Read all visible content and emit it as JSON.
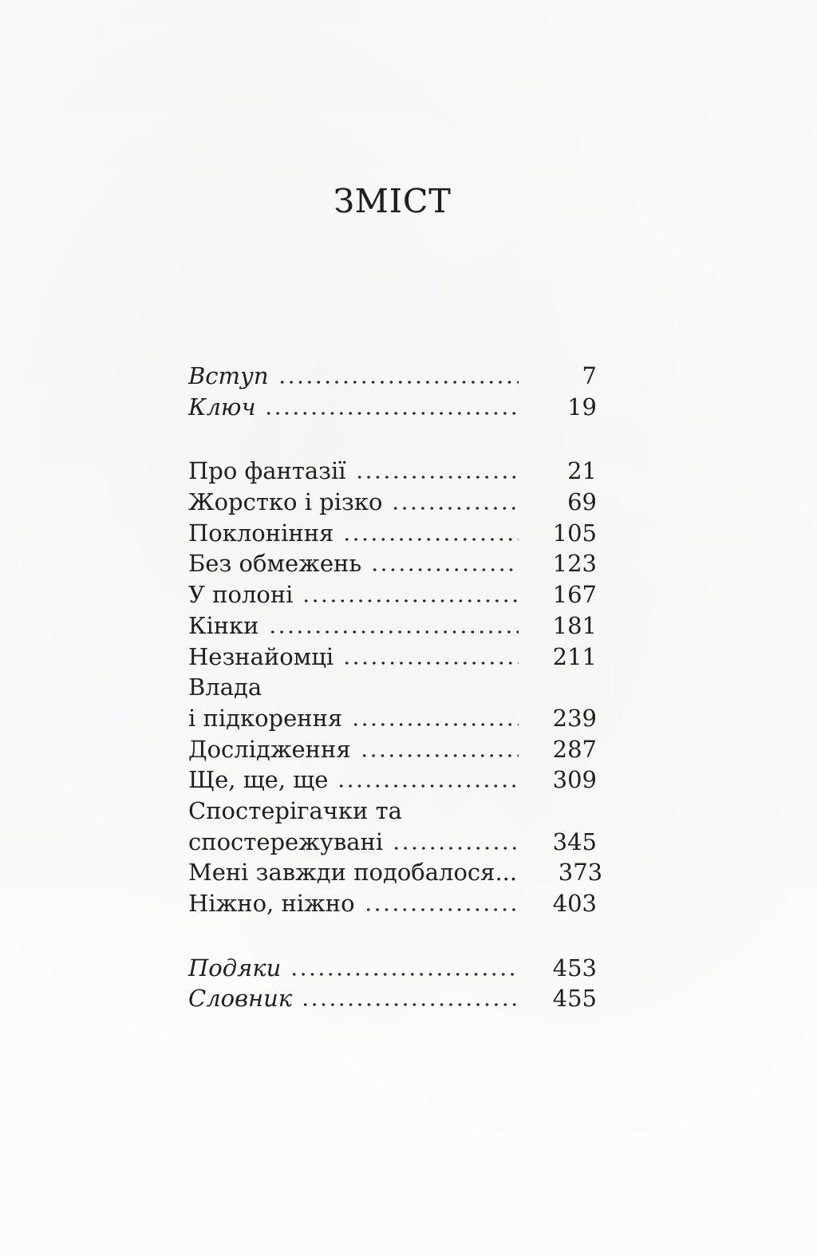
{
  "page": {
    "title": "ЗМІСТ",
    "colors": {
      "paper": "#fcfcfb",
      "ink": "#1f1f1f"
    },
    "sections": [
      {
        "style": "italic",
        "entries": [
          {
            "label": "Вступ",
            "page": "7"
          },
          {
            "label": "Ключ",
            "page": "19"
          }
        ]
      },
      {
        "style": "regular",
        "entries": [
          {
            "label": "Про фантазії",
            "page": "21"
          },
          {
            "label": "Жорстко і різко",
            "page": "69"
          },
          {
            "label": "Поклоніння",
            "page": "105"
          },
          {
            "label": "Без обмежень",
            "page": "123"
          },
          {
            "label": "У полоні",
            "page": "167"
          },
          {
            "label": "Кінки",
            "page": "181"
          },
          {
            "label": "Незнайомці",
            "page": "211"
          },
          {
            "label": "Влада",
            "page": ""
          },
          {
            "label": "і підкорення",
            "page": "239"
          },
          {
            "label": "Дослідження",
            "page": "287"
          },
          {
            "label": "Ще, ще, ще",
            "page": "309"
          },
          {
            "label": "Спостерігачки та",
            "page": ""
          },
          {
            "label": "спостережувані",
            "page": "345"
          },
          {
            "label": "Мені завжди подобалося...",
            "page": "373"
          },
          {
            "label": "Ніжно, ніжно",
            "page": "403"
          }
        ]
      },
      {
        "style": "italic",
        "entries": [
          {
            "label": "Подяки",
            "page": "453"
          },
          {
            "label": "Словник",
            "page": "455"
          }
        ]
      }
    ]
  }
}
